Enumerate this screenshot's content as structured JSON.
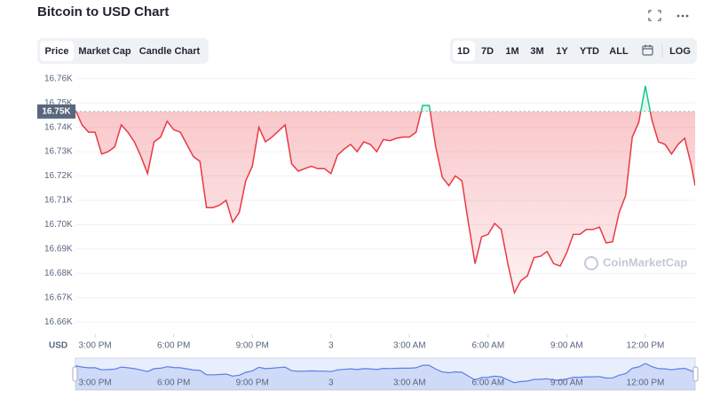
{
  "ui": {
    "tabs": [
      "Price",
      "Market Cap",
      "Candle Chart"
    ],
    "ranges": [
      "1D",
      "7D",
      "1M",
      "3M",
      "1Y",
      "YTD",
      "ALL"
    ],
    "log": "LOG"
  },
  "chart_data": {
    "type": "line",
    "title": "Bitcoin to USD Chart",
    "currency_label": "USD",
    "watermark": "CoinMarketCap",
    "color": "#ea3943",
    "color_above": "#16c784",
    "navigator_color": "#5b7fe8",
    "grid": true,
    "xlim": [
      14.25,
      37.9
    ],
    "xticks": [
      {
        "value": 15,
        "label": "3:00 PM"
      },
      {
        "value": 18,
        "label": "6:00 PM"
      },
      {
        "value": 21,
        "label": "9:00 PM"
      },
      {
        "value": 24,
        "label": "3"
      },
      {
        "value": 27,
        "label": "3:00 AM"
      },
      {
        "value": 30,
        "label": "6:00 AM"
      },
      {
        "value": 33,
        "label": "9:00 AM"
      },
      {
        "value": 36,
        "label": "12:00 PM"
      }
    ],
    "ylim": [
      16655,
      16765
    ],
    "yticks": [
      {
        "value": 16660,
        "label": "16.66K"
      },
      {
        "value": 16670,
        "label": "16.67K"
      },
      {
        "value": 16680,
        "label": "16.68K"
      },
      {
        "value": 16690,
        "label": "16.69K"
      },
      {
        "value": 16700,
        "label": "16.70K"
      },
      {
        "value": 16710,
        "label": "16.71K"
      },
      {
        "value": 16720,
        "label": "16.72K"
      },
      {
        "value": 16730,
        "label": "16.73K"
      },
      {
        "value": 16740,
        "label": "16.74K"
      },
      {
        "value": 16750,
        "label": "16.75K"
      },
      {
        "value": 16760,
        "label": "16.76K"
      }
    ],
    "reference": {
      "value": 16746.5,
      "label": "16.75K"
    },
    "x": [
      14.25,
      14.5,
      14.75,
      15,
      15.25,
      15.5,
      15.75,
      16,
      16.25,
      16.5,
      16.75,
      17,
      17.25,
      17.5,
      17.75,
      18,
      18.25,
      18.5,
      18.75,
      19,
      19.25,
      19.5,
      19.75,
      20,
      20.25,
      20.5,
      20.75,
      21,
      21.25,
      21.5,
      21.75,
      22,
      22.25,
      22.5,
      22.75,
      23,
      23.25,
      23.5,
      23.75,
      24,
      24.25,
      24.5,
      24.75,
      25,
      25.25,
      25.5,
      25.75,
      26,
      26.25,
      26.5,
      26.75,
      27,
      27.25,
      27.5,
      27.75,
      28,
      28.25,
      28.5,
      28.75,
      29,
      29.25,
      29.5,
      29.75,
      30,
      30.25,
      30.5,
      30.75,
      31,
      31.25,
      31.5,
      31.75,
      32,
      32.25,
      32.5,
      32.75,
      33,
      33.25,
      33.5,
      33.75,
      34,
      34.25,
      34.5,
      34.75,
      35,
      35.25,
      35.5,
      35.75,
      36,
      36.25,
      36.5,
      36.75,
      37,
      37.25,
      37.5,
      37.75,
      37.9
    ],
    "values": [
      16747,
      16741,
      16738,
      16738,
      16729,
      16730,
      16732,
      16741,
      16738,
      16734,
      16728,
      16721,
      16734,
      16736,
      16742.5,
      16739,
      16738,
      16733,
      16728,
      16726,
      16707,
      16707,
      16708,
      16710,
      16701,
      16705,
      16718,
      16724,
      16740,
      16734,
      16736,
      16738.5,
      16741,
      16725,
      16722,
      16723,
      16724,
      16723,
      16723,
      16721,
      16728.5,
      16731,
      16733,
      16730,
      16734,
      16733,
      16730,
      16735,
      16734.5,
      16735.5,
      16736,
      16736,
      16738,
      16749,
      16749,
      16732,
      16719.5,
      16716,
      16720,
      16718,
      16700.5,
      16684,
      16695,
      16696,
      16700.5,
      16698,
      16684,
      16672,
      16677,
      16679,
      16686.5,
      16687,
      16689,
      16684,
      16683,
      16688.5,
      16696,
      16696,
      16698,
      16698,
      16699,
      16692.5,
      16693,
      16705,
      16712,
      16736,
      16742,
      16757,
      16743,
      16734,
      16733,
      16729,
      16733,
      16735.5,
      16724.5,
      16716
    ]
  }
}
